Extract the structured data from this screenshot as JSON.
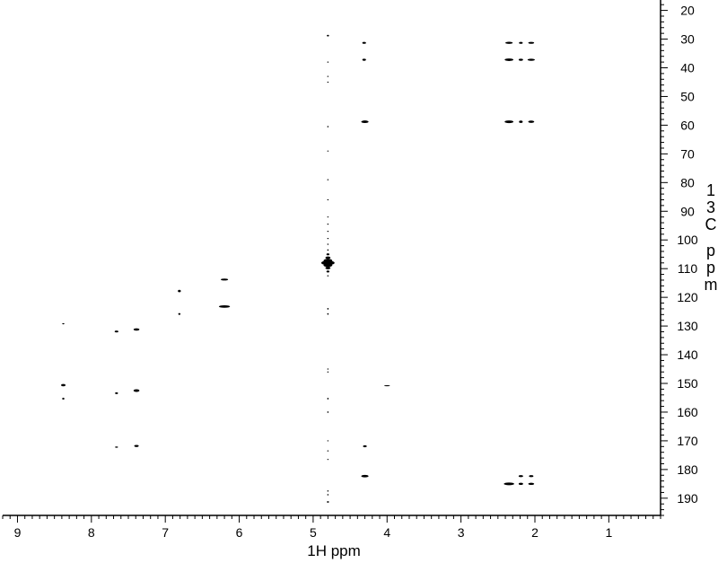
{
  "chart_data": {
    "type": "scatter",
    "title": "",
    "xlabel": "1H ppm",
    "ylabel": "13C ppm",
    "xlim": [
      9.2,
      0.3
    ],
    "ylim": [
      17,
      196
    ],
    "x_ticks": [
      9,
      8,
      7,
      6,
      5,
      4,
      3,
      2,
      1
    ],
    "y_ticks": [
      20,
      30,
      40,
      50,
      60,
      70,
      80,
      90,
      100,
      110,
      120,
      130,
      140,
      150,
      160,
      170,
      180,
      190
    ],
    "grid": false,
    "colors": {
      "foreground": "#000000",
      "background": "#ffffff"
    },
    "series": [
      {
        "points": [
          {
            "x": 4.31,
            "y": 31.3,
            "w": 0.05,
            "s": 1.1
          },
          {
            "x": 4.31,
            "y": 37.2,
            "w": 0.05,
            "s": 1.2
          },
          {
            "x": 4.3,
            "y": 58.8,
            "w": 0.1,
            "s": 1.4
          },
          {
            "x": 4.3,
            "y": 171.9,
            "w": 0.05,
            "s": 1.1
          },
          {
            "x": 4.3,
            "y": 182.3,
            "w": 0.1,
            "s": 1.4
          },
          {
            "x": 2.35,
            "y": 31.3,
            "w": 0.1,
            "s": 1.2
          },
          {
            "x": 2.19,
            "y": 31.3,
            "w": 0.05,
            "s": 1.1
          },
          {
            "x": 2.05,
            "y": 31.3,
            "w": 0.08,
            "s": 1.1
          },
          {
            "x": 2.35,
            "y": 37.2,
            "w": 0.12,
            "s": 1.4
          },
          {
            "x": 2.19,
            "y": 37.2,
            "w": 0.06,
            "s": 1.2
          },
          {
            "x": 2.05,
            "y": 37.2,
            "w": 0.1,
            "s": 1.2
          },
          {
            "x": 2.35,
            "y": 58.8,
            "w": 0.12,
            "s": 1.5
          },
          {
            "x": 2.19,
            "y": 58.8,
            "w": 0.05,
            "s": 1.3
          },
          {
            "x": 2.05,
            "y": 58.8,
            "w": 0.08,
            "s": 1.3
          },
          {
            "x": 2.19,
            "y": 182.3,
            "w": 0.06,
            "s": 1.1
          },
          {
            "x": 2.05,
            "y": 182.3,
            "w": 0.06,
            "s": 1.1
          },
          {
            "x": 2.35,
            "y": 185.0,
            "w": 0.14,
            "s": 1.5
          },
          {
            "x": 2.19,
            "y": 185.0,
            "w": 0.06,
            "s": 1.2
          },
          {
            "x": 2.05,
            "y": 185.0,
            "w": 0.08,
            "s": 1.2
          },
          {
            "x": 6.81,
            "y": 117.8,
            "w": 0.04,
            "s": 1.3
          },
          {
            "x": 6.81,
            "y": 125.8,
            "w": 0.03,
            "s": 1.1
          },
          {
            "x": 6.2,
            "y": 113.8,
            "w": 0.1,
            "s": 1.1
          },
          {
            "x": 6.2,
            "y": 123.2,
            "w": 0.15,
            "s": 1.4
          },
          {
            "x": 8.38,
            "y": 129.2,
            "w": 0.03,
            "s": 0.7
          },
          {
            "x": 8.38,
            "y": 150.6,
            "w": 0.06,
            "s": 1.3
          },
          {
            "x": 8.38,
            "y": 155.3,
            "w": 0.03,
            "s": 1.1
          },
          {
            "x": 7.66,
            "y": 131.9,
            "w": 0.05,
            "s": 1.1
          },
          {
            "x": 7.66,
            "y": 153.4,
            "w": 0.04,
            "s": 1.0
          },
          {
            "x": 7.66,
            "y": 172.2,
            "w": 0.04,
            "s": 0.7
          },
          {
            "x": 7.39,
            "y": 131.2,
            "w": 0.08,
            "s": 1.3
          },
          {
            "x": 7.39,
            "y": 152.5,
            "w": 0.08,
            "s": 1.5
          },
          {
            "x": 7.39,
            "y": 171.8,
            "w": 0.06,
            "s": 1.2
          },
          {
            "x": 4.0,
            "y": 150.8,
            "w": 0.08,
            "s": 0.6
          }
        ]
      },
      {
        "points": [
          {
            "x": 4.8,
            "y": 28.8,
            "w": 0.03,
            "s": 0.9
          },
          {
            "x": 4.8,
            "y": 38.0,
            "w": 0.01,
            "s": 0.6
          },
          {
            "x": 4.8,
            "y": 43.0,
            "w": 0.01,
            "s": 0.6
          },
          {
            "x": 4.8,
            "y": 45.0,
            "w": 0.01,
            "s": 0.6
          },
          {
            "x": 4.8,
            "y": 60.5,
            "w": 0.02,
            "s": 0.8
          },
          {
            "x": 4.8,
            "y": 69.0,
            "w": 0.01,
            "s": 0.6
          },
          {
            "x": 4.8,
            "y": 79.0,
            "w": 0.01,
            "s": 0.6
          },
          {
            "x": 4.8,
            "y": 86.0,
            "w": 0.01,
            "s": 0.6
          },
          {
            "x": 4.8,
            "y": 92.0,
            "w": 0.01,
            "s": 0.6
          },
          {
            "x": 4.8,
            "y": 94.5,
            "w": 0.01,
            "s": 0.6
          },
          {
            "x": 4.8,
            "y": 97.0,
            "w": 0.01,
            "s": 0.6
          },
          {
            "x": 4.8,
            "y": 99.5,
            "w": 0.01,
            "s": 0.6
          },
          {
            "x": 4.8,
            "y": 101.5,
            "w": 0.02,
            "s": 0.7
          },
          {
            "x": 4.8,
            "y": 103.5,
            "w": 0.02,
            "s": 0.8
          },
          {
            "x": 4.8,
            "y": 105.0,
            "w": 0.04,
            "s": 1.1
          },
          {
            "x": 4.8,
            "y": 106.2,
            "w": 0.07,
            "s": 1.4
          },
          {
            "x": 4.8,
            "y": 107.2,
            "w": 0.12,
            "s": 2.0
          },
          {
            "x": 4.8,
            "y": 108.0,
            "w": 0.18,
            "s": 2.5
          },
          {
            "x": 4.8,
            "y": 108.8,
            "w": 0.12,
            "s": 2.0
          },
          {
            "x": 4.8,
            "y": 109.8,
            "w": 0.07,
            "s": 1.4
          },
          {
            "x": 4.8,
            "y": 111.0,
            "w": 0.04,
            "s": 1.1
          },
          {
            "x": 4.8,
            "y": 112.5,
            "w": 0.02,
            "s": 0.7
          },
          {
            "x": 4.8,
            "y": 124.0,
            "w": 0.02,
            "s": 0.9
          },
          {
            "x": 4.8,
            "y": 125.8,
            "w": 0.02,
            "s": 0.9
          },
          {
            "x": 4.8,
            "y": 145.0,
            "w": 0.01,
            "s": 0.6
          },
          {
            "x": 4.8,
            "y": 146.0,
            "w": 0.01,
            "s": 0.6
          },
          {
            "x": 4.8,
            "y": 155.3,
            "w": 0.02,
            "s": 0.9
          },
          {
            "x": 4.8,
            "y": 160.0,
            "w": 0.02,
            "s": 0.8
          },
          {
            "x": 4.8,
            "y": 170.0,
            "w": 0.01,
            "s": 0.6
          },
          {
            "x": 4.8,
            "y": 173.5,
            "w": 0.01,
            "s": 0.6
          },
          {
            "x": 4.8,
            "y": 176.5,
            "w": 0.01,
            "s": 0.6
          },
          {
            "x": 4.8,
            "y": 187.5,
            "w": 0.02,
            "s": 0.7
          },
          {
            "x": 4.8,
            "y": 188.8,
            "w": 0.02,
            "s": 0.7
          },
          {
            "x": 4.8,
            "y": 191.3,
            "w": 0.03,
            "s": 0.9
          }
        ]
      }
    ]
  }
}
